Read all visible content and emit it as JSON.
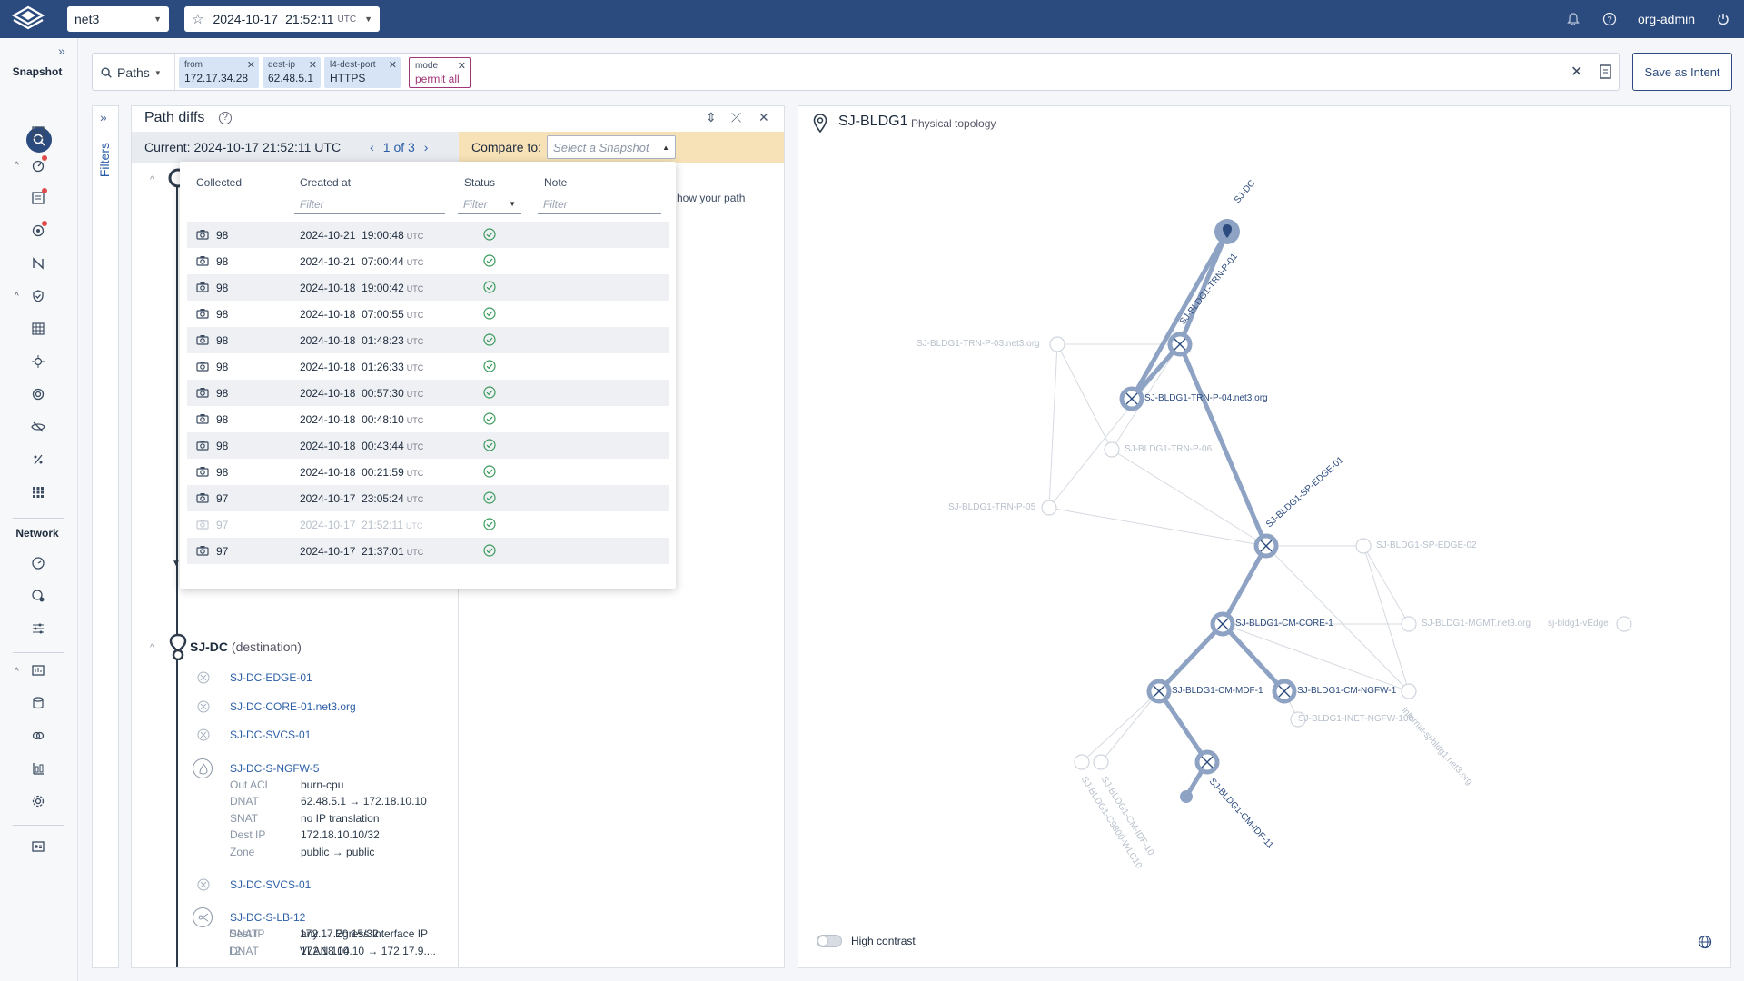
{
  "topbar": {
    "network": "net3",
    "snapshot_date": "2024-10-17",
    "snapshot_time": "21:52:11",
    "snapshot_tz": "UTC",
    "user": "org-admin"
  },
  "rail": {
    "snapshot_label": "Snapshot",
    "network_label": "Network"
  },
  "search": {
    "mode_label": "Paths",
    "chips": [
      {
        "key": "from",
        "value": "172.17.34.28"
      },
      {
        "key": "dest-ip",
        "value": "62.48.5.1"
      },
      {
        "key": "l4-dest-port",
        "value": "HTTPS"
      },
      {
        "key": "mode",
        "value": "permit all"
      }
    ],
    "save_label": "Save as Intent"
  },
  "filters_label": "Filters",
  "path_diffs": {
    "title": "Path diffs",
    "current_label": "Current: 2024-10-17  21:52:11 UTC",
    "pager": "1 of 3",
    "compare_label": "Compare to:",
    "compare_placeholder": "Select a Snapshot",
    "hint_line1": "how your path",
    "hint_line2": "."
  },
  "dropdown": {
    "headers": {
      "collected": "Collected",
      "created_at": "Created at",
      "status": "Status",
      "note": "Note"
    },
    "filter_placeholder": "Filter",
    "rows": [
      {
        "collected": "98",
        "date": "2024-10-21",
        "time": "19:00:48",
        "tz": "UTC",
        "dim": false
      },
      {
        "collected": "98",
        "date": "2024-10-21",
        "time": "07:00:44",
        "tz": "UTC",
        "dim": false
      },
      {
        "collected": "98",
        "date": "2024-10-18",
        "time": "19:00:42",
        "tz": "UTC",
        "dim": false
      },
      {
        "collected": "98",
        "date": "2024-10-18",
        "time": "07:00:55",
        "tz": "UTC",
        "dim": false
      },
      {
        "collected": "98",
        "date": "2024-10-18",
        "time": "01:48:23",
        "tz": "UTC",
        "dim": false
      },
      {
        "collected": "98",
        "date": "2024-10-18",
        "time": "01:26:33",
        "tz": "UTC",
        "dim": false
      },
      {
        "collected": "98",
        "date": "2024-10-18",
        "time": "00:57:30",
        "tz": "UTC",
        "dim": false
      },
      {
        "collected": "98",
        "date": "2024-10-18",
        "time": "00:48:10",
        "tz": "UTC",
        "dim": false
      },
      {
        "collected": "98",
        "date": "2024-10-18",
        "time": "00:43:44",
        "tz": "UTC",
        "dim": false
      },
      {
        "collected": "98",
        "date": "2024-10-18",
        "time": "00:21:59",
        "tz": "UTC",
        "dim": false
      },
      {
        "collected": "97",
        "date": "2024-10-17",
        "time": "23:05:24",
        "tz": "UTC",
        "dim": false
      },
      {
        "collected": "97",
        "date": "2024-10-17",
        "time": "21:52:11",
        "tz": "UTC",
        "dim": true
      },
      {
        "collected": "97",
        "date": "2024-10-17",
        "time": "21:37:01",
        "tz": "UTC",
        "dim": false
      }
    ]
  },
  "path": {
    "destination_name": "SJ-DC",
    "destination_suffix": "(destination)",
    "hops": [
      {
        "name": "SJ-DC-EDGE-01"
      },
      {
        "name": "SJ-DC-CORE-01.net3.org"
      },
      {
        "name": "SJ-DC-SVCS-01"
      },
      {
        "name": "SJ-DC-S-NGFW-5",
        "attrs": [
          {
            "k": "Out ACL",
            "v": "burn-cpu"
          },
          {
            "k": "DNAT",
            "v": "62.48.5.1 → 172.18.10.10"
          },
          {
            "k": "SNAT",
            "v": "no IP translation"
          },
          {
            "k": "Dest IP",
            "v": "172.18.10.10/32"
          },
          {
            "k": "Zone",
            "v": "public → public"
          }
        ]
      },
      {
        "name": "SJ-DC-SVCS-01"
      },
      {
        "name": "SJ-DC-S-LB-12",
        "attrs": [
          {
            "k": "SNAT",
            "v": "any → Egress Interface IP"
          },
          {
            "k": "DNAT",
            "v": "172.18.10.10 → 172.17.9...."
          },
          {
            "k": "Dest IP",
            "v": "172.17.20.15/32"
          },
          {
            "k": "L2",
            "v": "VLAN 104"
          }
        ]
      }
    ]
  },
  "topology": {
    "title": "SJ-BLDG1",
    "subtitle": "Physical topology",
    "high_contrast_label": "High contrast",
    "nodes": {
      "dc": "SJ-DC",
      "trn_p_01": "SJ-BLDG1-TRN-P-01",
      "trn_p_03": "SJ-BLDG1-TRN-P-03.net3.org",
      "trn_p_04": "SJ-BLDG1-TRN-P-04.net3.org",
      "trn_p_06": "SJ-BLDG1-TRN-P-06",
      "trn_p_05": "SJ-BLDG1-TRN-P-05",
      "sp_edge_01": "SJ-BLDG1-SP-EDGE-01",
      "sp_edge_02": "SJ-BLDG1-SP-EDGE-02",
      "cm_core_1": "SJ-BLDG1-CM-CORE-1",
      "mgmt": "SJ-BLDG1-MGMT.net3.org",
      "vedge": "sj-bldg1-vEdge",
      "cm_mdf_1": "SJ-BLDG1-CM-MDF-1",
      "cm_ngfw_1": "SJ-BLDG1-CM-NGFW-1",
      "inet_ngfw": "SJ-BLDG1-INET-NGFW-100",
      "internal": "internal-sj-bldg1.net3.org",
      "cm_idf_11": "SJ-BLDG1-CM-IDF-11",
      "cm_idf_10": "SJ-BLDG1-CM-IDF-10",
      "c9800": "SJ-BLDG1-C9800-WLC10"
    }
  }
}
